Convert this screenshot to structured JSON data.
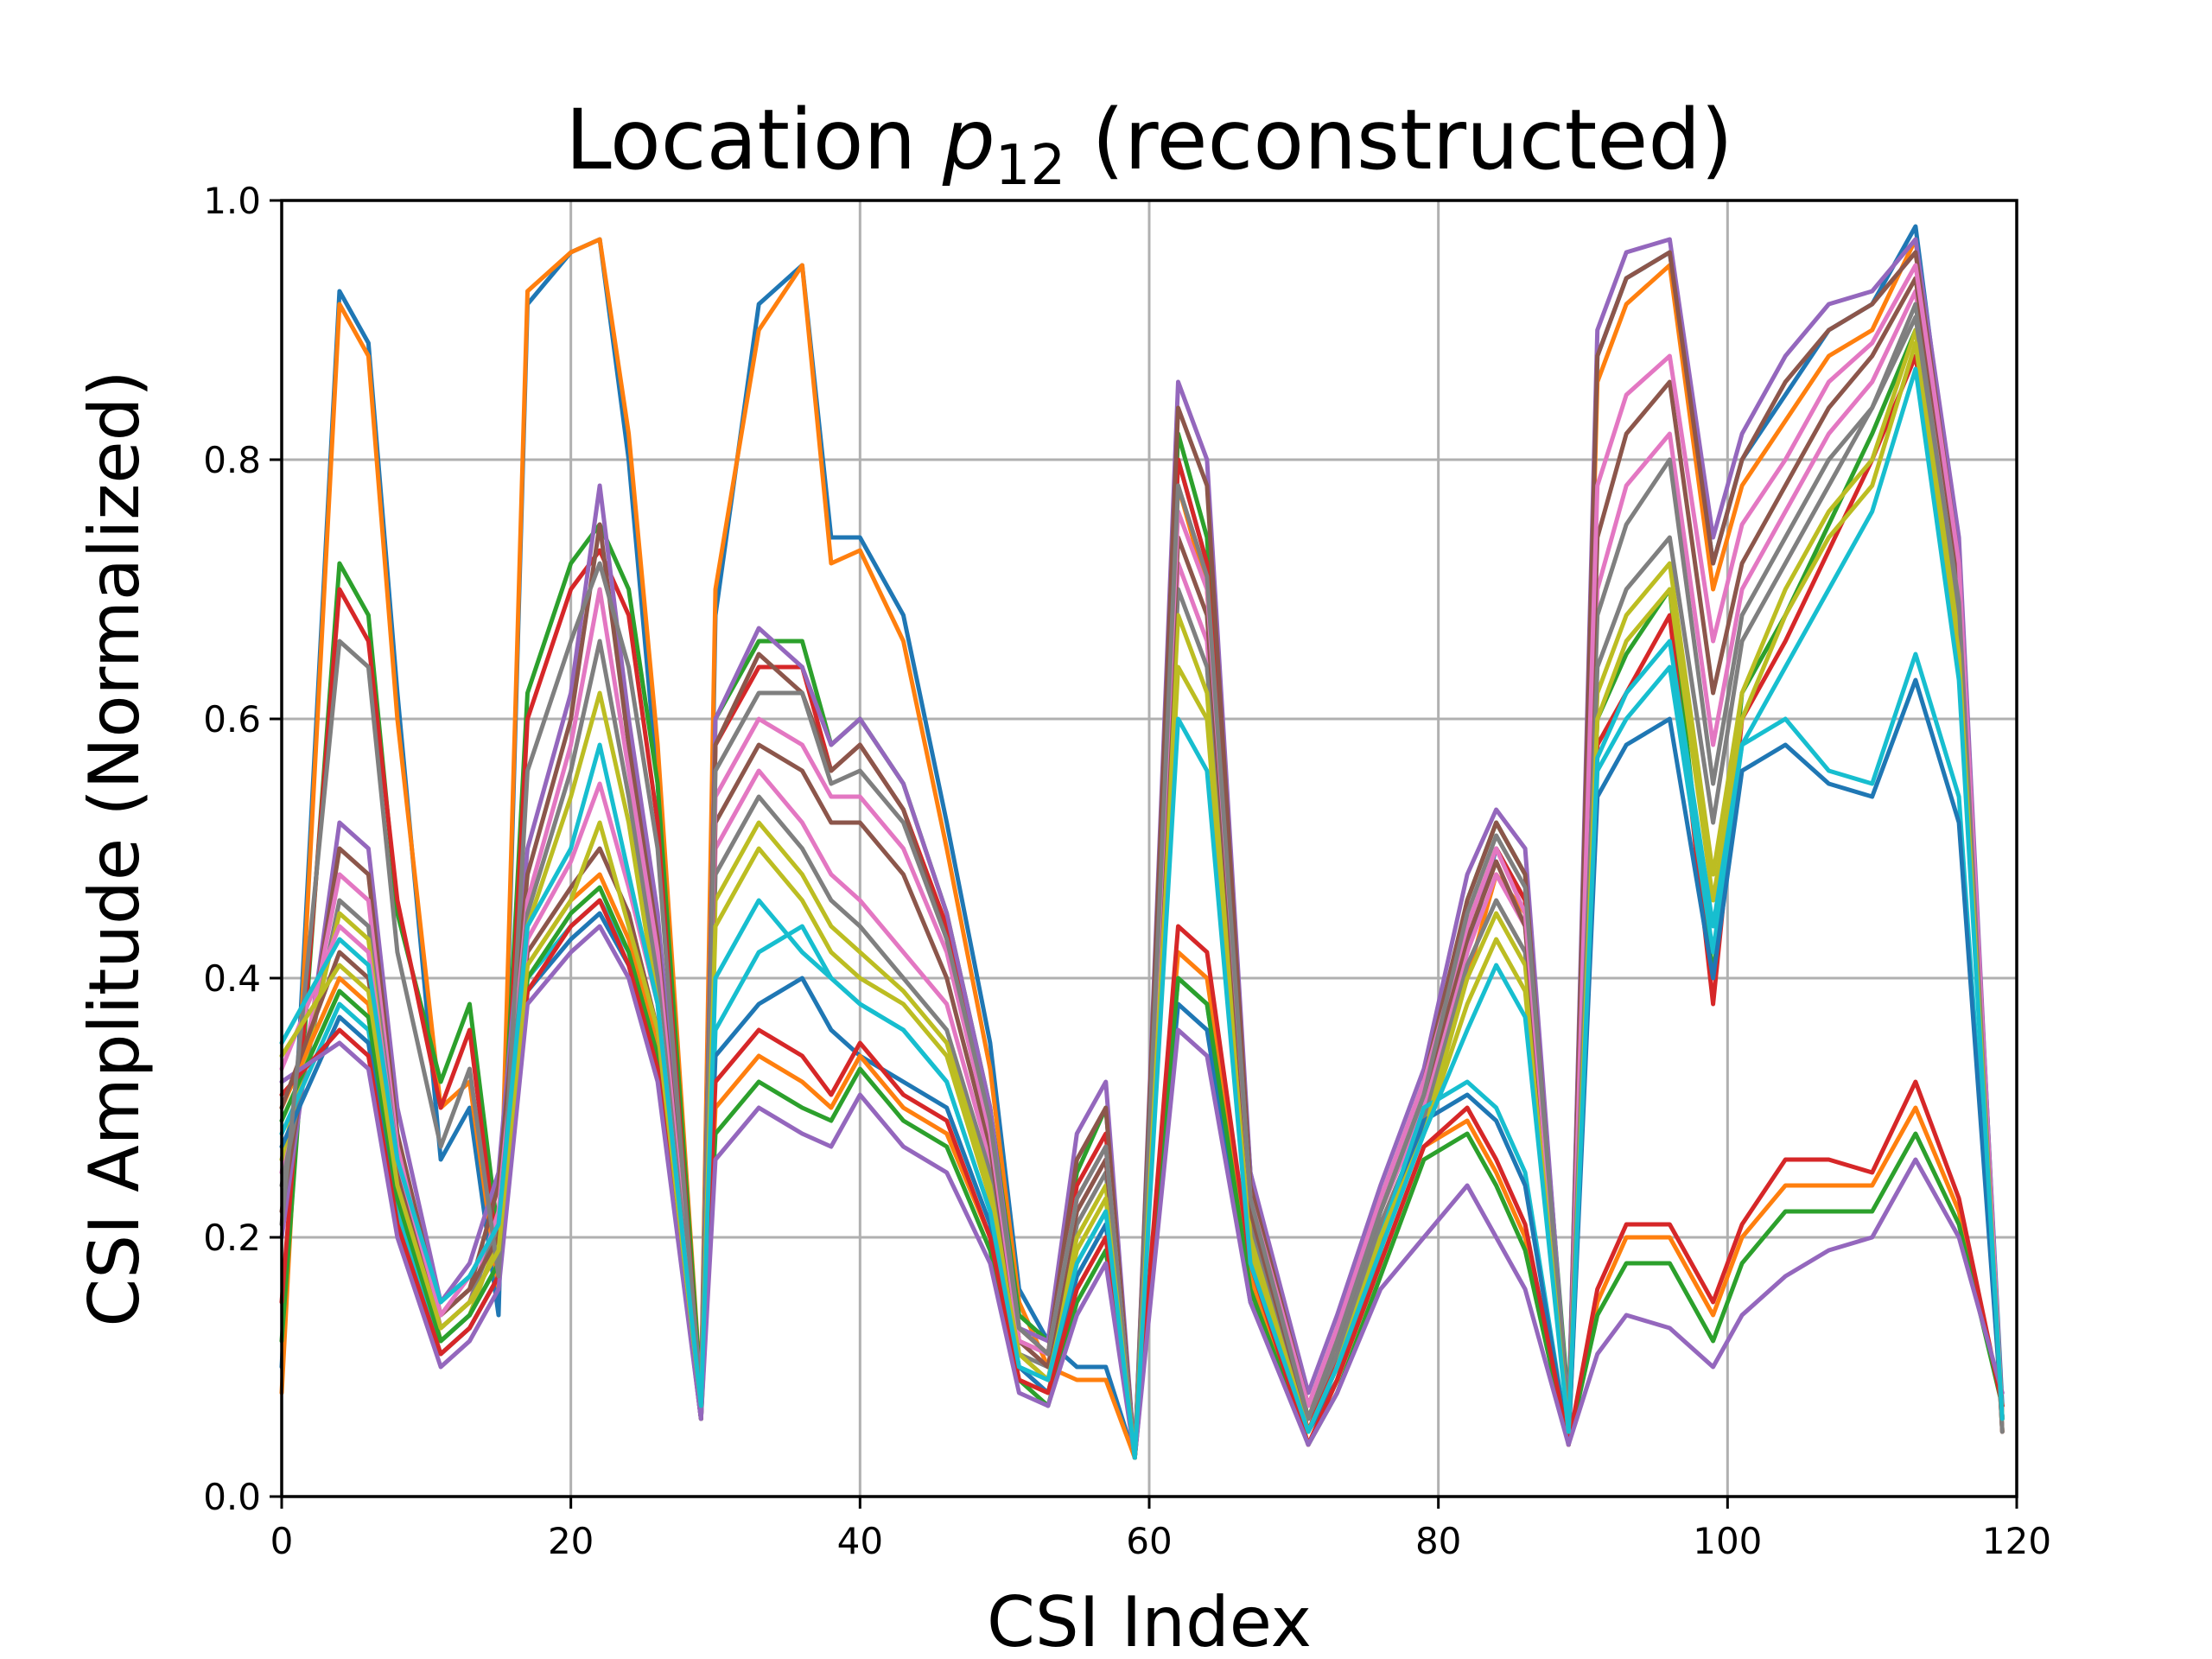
{
  "chart_data": {
    "type": "line",
    "title": "Location p12 (reconstructed)",
    "title_parts": {
      "prefix": "Location ",
      "variable": "p",
      "subscript": "12",
      "suffix": " (reconstructed)"
    },
    "xlabel": "CSI Index",
    "ylabel": "CSI Amplitude (Normalized)",
    "xlim": [
      0,
      120
    ],
    "ylim": [
      0.0,
      1.0
    ],
    "xticks": [
      "0",
      "20",
      "40",
      "60",
      "80",
      "100",
      "120"
    ],
    "yticks": [
      "0.0",
      "0.2",
      "0.4",
      "0.6",
      "0.8",
      "1.0"
    ],
    "grid": true,
    "legend": "none",
    "palette": [
      "#1f77b4",
      "#ff7f0e",
      "#2ca02c",
      "#d62728",
      "#9467bd",
      "#8c564b",
      "#e377c2",
      "#7f7f7f",
      "#bcbd22",
      "#17becf"
    ],
    "x": [
      0,
      4,
      6,
      8,
      11,
      13,
      15,
      17,
      20,
      22,
      24,
      26,
      29,
      30,
      33,
      36,
      38,
      40,
      43,
      46,
      49,
      51,
      53,
      55,
      57,
      59,
      62,
      64,
      67,
      71,
      73,
      76,
      79,
      82,
      84,
      86,
      89,
      91,
      93,
      96,
      99,
      101,
      104,
      107,
      110,
      113,
      116,
      119
    ],
    "series": [
      {
        "values": [
          0.1,
          0.93,
          0.89,
          0.62,
          0.26,
          0.3,
          0.14,
          0.92,
          0.96,
          0.97,
          0.8,
          0.55,
          0.07,
          0.68,
          0.92,
          0.95,
          0.74,
          0.74,
          0.68,
          0.52,
          0.35,
          0.16,
          0.12,
          0.1,
          0.1,
          0.03,
          0.8,
          0.72,
          0.2,
          0.05,
          0.1,
          0.2,
          0.3,
          0.42,
          0.5,
          0.46,
          0.06,
          0.88,
          0.94,
          0.96,
          0.72,
          0.8,
          0.85,
          0.9,
          0.92,
          0.98,
          0.72,
          0.07
        ]
      },
      {
        "values": [
          0.08,
          0.92,
          0.88,
          0.6,
          0.3,
          0.32,
          0.16,
          0.93,
          0.96,
          0.97,
          0.82,
          0.58,
          0.08,
          0.7,
          0.9,
          0.95,
          0.72,
          0.73,
          0.66,
          0.5,
          0.33,
          0.15,
          0.1,
          0.09,
          0.09,
          0.03,
          0.78,
          0.7,
          0.2,
          0.04,
          0.09,
          0.19,
          0.29,
          0.4,
          0.48,
          0.45,
          0.05,
          0.86,
          0.92,
          0.95,
          0.7,
          0.78,
          0.83,
          0.88,
          0.9,
          0.97,
          0.7,
          0.06
        ]
      },
      {
        "values": [
          0.12,
          0.72,
          0.68,
          0.45,
          0.32,
          0.38,
          0.2,
          0.62,
          0.72,
          0.75,
          0.7,
          0.55,
          0.08,
          0.6,
          0.66,
          0.66,
          0.58,
          0.6,
          0.55,
          0.45,
          0.3,
          0.14,
          0.12,
          0.25,
          0.3,
          0.03,
          0.82,
          0.74,
          0.25,
          0.06,
          0.12,
          0.22,
          0.3,
          0.46,
          0.52,
          0.48,
          0.07,
          0.6,
          0.65,
          0.7,
          0.4,
          0.62,
          0.68,
          0.75,
          0.82,
          0.9,
          0.68,
          0.05
        ]
      },
      {
        "values": [
          0.15,
          0.7,
          0.66,
          0.46,
          0.3,
          0.36,
          0.18,
          0.6,
          0.7,
          0.73,
          0.68,
          0.52,
          0.07,
          0.58,
          0.64,
          0.64,
          0.56,
          0.58,
          0.53,
          0.44,
          0.29,
          0.13,
          0.11,
          0.24,
          0.28,
          0.03,
          0.8,
          0.72,
          0.24,
          0.05,
          0.11,
          0.21,
          0.29,
          0.44,
          0.5,
          0.46,
          0.06,
          0.58,
          0.62,
          0.68,
          0.38,
          0.6,
          0.66,
          0.73,
          0.8,
          0.88,
          0.66,
          0.05
        ]
      },
      {
        "values": [
          0.2,
          0.52,
          0.5,
          0.3,
          0.15,
          0.18,
          0.25,
          0.5,
          0.62,
          0.78,
          0.6,
          0.45,
          0.08,
          0.6,
          0.67,
          0.64,
          0.58,
          0.6,
          0.55,
          0.45,
          0.3,
          0.13,
          0.12,
          0.28,
          0.32,
          0.03,
          0.86,
          0.8,
          0.25,
          0.08,
          0.14,
          0.24,
          0.33,
          0.48,
          0.53,
          0.5,
          0.06,
          0.9,
          0.96,
          0.97,
          0.74,
          0.82,
          0.88,
          0.92,
          0.93,
          0.97,
          0.74,
          0.06
        ]
      },
      {
        "values": [
          0.22,
          0.5,
          0.48,
          0.28,
          0.14,
          0.16,
          0.24,
          0.48,
          0.6,
          0.75,
          0.58,
          0.43,
          0.07,
          0.58,
          0.65,
          0.62,
          0.56,
          0.58,
          0.53,
          0.43,
          0.28,
          0.12,
          0.11,
          0.26,
          0.3,
          0.03,
          0.84,
          0.78,
          0.24,
          0.07,
          0.13,
          0.23,
          0.32,
          0.46,
          0.52,
          0.48,
          0.05,
          0.88,
          0.94,
          0.96,
          0.72,
          0.8,
          0.86,
          0.9,
          0.92,
          0.96,
          0.72,
          0.06
        ]
      },
      {
        "values": [
          0.25,
          0.48,
          0.46,
          0.27,
          0.13,
          0.15,
          0.22,
          0.46,
          0.58,
          0.7,
          0.56,
          0.42,
          0.07,
          0.5,
          0.56,
          0.52,
          0.48,
          0.46,
          0.42,
          0.38,
          0.26,
          0.12,
          0.1,
          0.22,
          0.26,
          0.03,
          0.72,
          0.66,
          0.22,
          0.06,
          0.12,
          0.22,
          0.3,
          0.42,
          0.48,
          0.44,
          0.05,
          0.7,
          0.78,
          0.82,
          0.58,
          0.7,
          0.76,
          0.82,
          0.86,
          0.93,
          0.7,
          0.06
        ]
      },
      {
        "values": [
          0.24,
          0.46,
          0.44,
          0.26,
          0.13,
          0.15,
          0.21,
          0.45,
          0.56,
          0.66,
          0.54,
          0.4,
          0.07,
          0.48,
          0.54,
          0.5,
          0.46,
          0.44,
          0.4,
          0.36,
          0.25,
          0.11,
          0.1,
          0.21,
          0.25,
          0.03,
          0.7,
          0.64,
          0.21,
          0.06,
          0.11,
          0.21,
          0.29,
          0.41,
          0.46,
          0.42,
          0.05,
          0.68,
          0.75,
          0.8,
          0.55,
          0.68,
          0.74,
          0.8,
          0.84,
          0.92,
          0.68,
          0.06
        ]
      },
      {
        "values": [
          0.26,
          0.45,
          0.43,
          0.25,
          0.12,
          0.14,
          0.2,
          0.44,
          0.54,
          0.62,
          0.52,
          0.38,
          0.06,
          0.46,
          0.52,
          0.48,
          0.44,
          0.42,
          0.39,
          0.35,
          0.24,
          0.11,
          0.09,
          0.2,
          0.24,
          0.03,
          0.68,
          0.62,
          0.2,
          0.05,
          0.1,
          0.2,
          0.28,
          0.4,
          0.45,
          0.41,
          0.05,
          0.62,
          0.68,
          0.72,
          0.48,
          0.62,
          0.7,
          0.76,
          0.8,
          0.9,
          0.66,
          0.06
        ]
      },
      {
        "values": [
          0.28,
          0.38,
          0.36,
          0.22,
          0.12,
          0.14,
          0.18,
          0.4,
          0.44,
          0.46,
          0.42,
          0.34,
          0.06,
          0.36,
          0.42,
          0.44,
          0.4,
          0.38,
          0.36,
          0.32,
          0.22,
          0.1,
          0.09,
          0.18,
          0.22,
          0.03,
          0.4,
          0.38,
          0.16,
          0.05,
          0.1,
          0.2,
          0.3,
          0.32,
          0.3,
          0.25,
          0.04,
          0.56,
          0.6,
          0.64,
          0.42,
          0.58,
          0.6,
          0.56,
          0.55,
          0.65,
          0.54,
          0.06
        ]
      },
      {
        "values": [
          0.27,
          0.37,
          0.35,
          0.21,
          0.11,
          0.13,
          0.17,
          0.39,
          0.43,
          0.45,
          0.41,
          0.33,
          0.06,
          0.34,
          0.38,
          0.4,
          0.36,
          0.34,
          0.32,
          0.3,
          0.21,
          0.1,
          0.08,
          0.17,
          0.21,
          0.03,
          0.38,
          0.36,
          0.15,
          0.05,
          0.09,
          0.19,
          0.29,
          0.31,
          0.29,
          0.24,
          0.04,
          0.54,
          0.58,
          0.6,
          0.4,
          0.56,
          0.58,
          0.55,
          0.54,
          0.63,
          0.52,
          0.06
        ]
      },
      {
        "values": [
          0.3,
          0.4,
          0.38,
          0.24,
          0.13,
          0.15,
          0.19,
          0.41,
          0.46,
          0.48,
          0.43,
          0.35,
          0.07,
          0.3,
          0.34,
          0.32,
          0.3,
          0.34,
          0.3,
          0.28,
          0.2,
          0.09,
          0.08,
          0.16,
          0.2,
          0.03,
          0.42,
          0.4,
          0.17,
          0.04,
          0.09,
          0.18,
          0.27,
          0.29,
          0.25,
          0.2,
          0.04,
          0.15,
          0.2,
          0.2,
          0.14,
          0.2,
          0.24,
          0.24,
          0.24,
          0.3,
          0.22,
          0.07
        ]
      },
      {
        "values": [
          0.29,
          0.39,
          0.37,
          0.23,
          0.12,
          0.14,
          0.18,
          0.4,
          0.45,
          0.47,
          0.42,
          0.34,
          0.06,
          0.28,
          0.32,
          0.3,
          0.29,
          0.33,
          0.29,
          0.27,
          0.19,
          0.09,
          0.07,
          0.15,
          0.19,
          0.03,
          0.4,
          0.38,
          0.16,
          0.04,
          0.08,
          0.17,
          0.26,
          0.28,
          0.24,
          0.19,
          0.04,
          0.14,
          0.18,
          0.18,
          0.12,
          0.18,
          0.22,
          0.22,
          0.22,
          0.28,
          0.21,
          0.07
        ]
      },
      {
        "values": [
          0.31,
          0.36,
          0.34,
          0.21,
          0.11,
          0.13,
          0.17,
          0.39,
          0.44,
          0.46,
          0.41,
          0.33,
          0.06,
          0.32,
          0.36,
          0.34,
          0.31,
          0.35,
          0.31,
          0.29,
          0.2,
          0.09,
          0.08,
          0.16,
          0.2,
          0.03,
          0.44,
          0.42,
          0.18,
          0.04,
          0.09,
          0.18,
          0.27,
          0.3,
          0.26,
          0.21,
          0.04,
          0.16,
          0.21,
          0.21,
          0.15,
          0.21,
          0.26,
          0.26,
          0.25,
          0.32,
          0.23,
          0.07
        ]
      },
      {
        "values": [
          0.32,
          0.35,
          0.33,
          0.2,
          0.1,
          0.12,
          0.16,
          0.38,
          0.42,
          0.44,
          0.4,
          0.32,
          0.06,
          0.26,
          0.3,
          0.28,
          0.27,
          0.31,
          0.27,
          0.25,
          0.18,
          0.08,
          0.07,
          0.14,
          0.18,
          0.03,
          0.36,
          0.34,
          0.15,
          0.04,
          0.08,
          0.16,
          0.2,
          0.24,
          0.2,
          0.16,
          0.04,
          0.11,
          0.14,
          0.13,
          0.1,
          0.14,
          0.17,
          0.19,
          0.2,
          0.26,
          0.2,
          0.08
        ]
      },
      {
        "values": [
          0.3,
          0.42,
          0.4,
          0.25,
          0.14,
          0.16,
          0.2,
          0.42,
          0.47,
          0.5,
          0.45,
          0.36,
          0.07,
          0.52,
          0.58,
          0.56,
          0.52,
          0.52,
          0.48,
          0.4,
          0.27,
          0.12,
          0.1,
          0.22,
          0.26,
          0.03,
          0.74,
          0.68,
          0.22,
          0.06,
          0.12,
          0.22,
          0.31,
          0.43,
          0.49,
          0.44,
          0.05,
          0.74,
          0.82,
          0.86,
          0.62,
          0.72,
          0.78,
          0.84,
          0.88,
          0.94,
          0.71,
          0.06
        ]
      },
      {
        "values": [
          0.33,
          0.44,
          0.42,
          0.26,
          0.14,
          0.17,
          0.21,
          0.43,
          0.49,
          0.55,
          0.47,
          0.38,
          0.07,
          0.54,
          0.6,
          0.58,
          0.54,
          0.54,
          0.5,
          0.42,
          0.28,
          0.12,
          0.11,
          0.23,
          0.27,
          0.03,
          0.76,
          0.7,
          0.23,
          0.07,
          0.13,
          0.23,
          0.32,
          0.44,
          0.5,
          0.45,
          0.05,
          0.78,
          0.85,
          0.88,
          0.66,
          0.75,
          0.8,
          0.86,
          0.89,
          0.95,
          0.72,
          0.06
        ]
      },
      {
        "values": [
          0.21,
          0.66,
          0.64,
          0.42,
          0.27,
          0.33,
          0.17,
          0.56,
          0.66,
          0.72,
          0.64,
          0.5,
          0.07,
          0.56,
          0.62,
          0.62,
          0.55,
          0.56,
          0.52,
          0.43,
          0.29,
          0.13,
          0.11,
          0.23,
          0.27,
          0.03,
          0.78,
          0.71,
          0.23,
          0.06,
          0.12,
          0.22,
          0.31,
          0.45,
          0.51,
          0.47,
          0.06,
          0.64,
          0.7,
          0.74,
          0.52,
          0.66,
          0.72,
          0.78,
          0.84,
          0.91,
          0.69,
          0.05
        ]
      },
      {
        "values": [
          0.34,
          0.41,
          0.39,
          0.24,
          0.13,
          0.15,
          0.19,
          0.41,
          0.46,
          0.52,
          0.44,
          0.36,
          0.07,
          0.44,
          0.5,
          0.46,
          0.42,
          0.4,
          0.38,
          0.34,
          0.23,
          0.11,
          0.09,
          0.19,
          0.23,
          0.03,
          0.64,
          0.6,
          0.19,
          0.05,
          0.1,
          0.2,
          0.28,
          0.38,
          0.43,
          0.39,
          0.05,
          0.6,
          0.66,
          0.7,
          0.46,
          0.6,
          0.68,
          0.74,
          0.78,
          0.89,
          0.65,
          0.06
        ]
      },
      {
        "values": [
          0.35,
          0.43,
          0.41,
          0.26,
          0.15,
          0.17,
          0.21,
          0.44,
          0.5,
          0.58,
          0.48,
          0.38,
          0.07,
          0.4,
          0.46,
          0.42,
          0.4,
          0.38,
          0.36,
          0.32,
          0.22,
          0.1,
          0.09,
          0.18,
          0.22,
          0.03,
          0.6,
          0.56,
          0.18,
          0.05,
          0.1,
          0.19,
          0.28,
          0.36,
          0.41,
          0.37,
          0.05,
          0.57,
          0.62,
          0.66,
          0.44,
          0.58,
          0.64,
          0.7,
          0.76,
          0.87,
          0.63,
          0.06
        ]
      }
    ]
  }
}
